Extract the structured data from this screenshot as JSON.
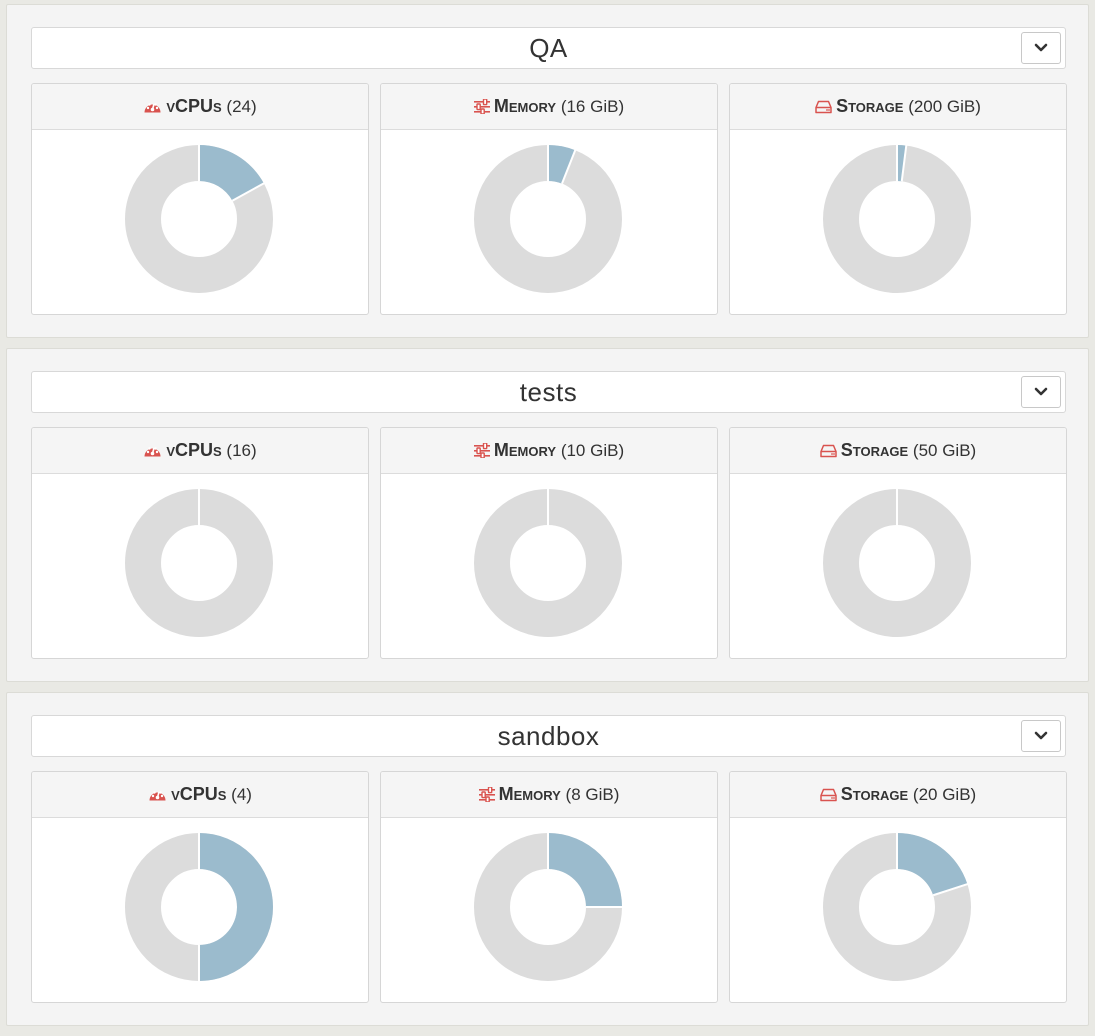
{
  "colors": {
    "used": "#9bbbcd",
    "free": "#dcdcdc",
    "icon": "#d9534f"
  },
  "projects": [
    {
      "name": "QA",
      "quotas": [
        {
          "icon": "dashboard-icon",
          "label": "vCPUs",
          "detail": "(24)",
          "used_fraction": 0.17
        },
        {
          "icon": "sliders-icon",
          "label": "Memory",
          "detail": "(16 GiB)",
          "used_fraction": 0.06
        },
        {
          "icon": "hard-drive-icon",
          "label": "Storage",
          "detail": "(200 GiB)",
          "used_fraction": 0.02
        }
      ]
    },
    {
      "name": "tests",
      "quotas": [
        {
          "icon": "dashboard-icon",
          "label": "vCPUs",
          "detail": "(16)",
          "used_fraction": 0
        },
        {
          "icon": "sliders-icon",
          "label": "Memory",
          "detail": "(10 GiB)",
          "used_fraction": 0
        },
        {
          "icon": "hard-drive-icon",
          "label": "Storage",
          "detail": "(50 GiB)",
          "used_fraction": 0
        }
      ]
    },
    {
      "name": "sandbox",
      "quotas": [
        {
          "icon": "dashboard-icon",
          "label": "vCPUs",
          "detail": "(4)",
          "used_fraction": 0.5
        },
        {
          "icon": "sliders-icon",
          "label": "Memory",
          "detail": "(8 GiB)",
          "used_fraction": 0.25
        },
        {
          "icon": "hard-drive-icon",
          "label": "Storage",
          "detail": "(20 GiB)",
          "used_fraction": 0.2
        }
      ]
    }
  ]
}
